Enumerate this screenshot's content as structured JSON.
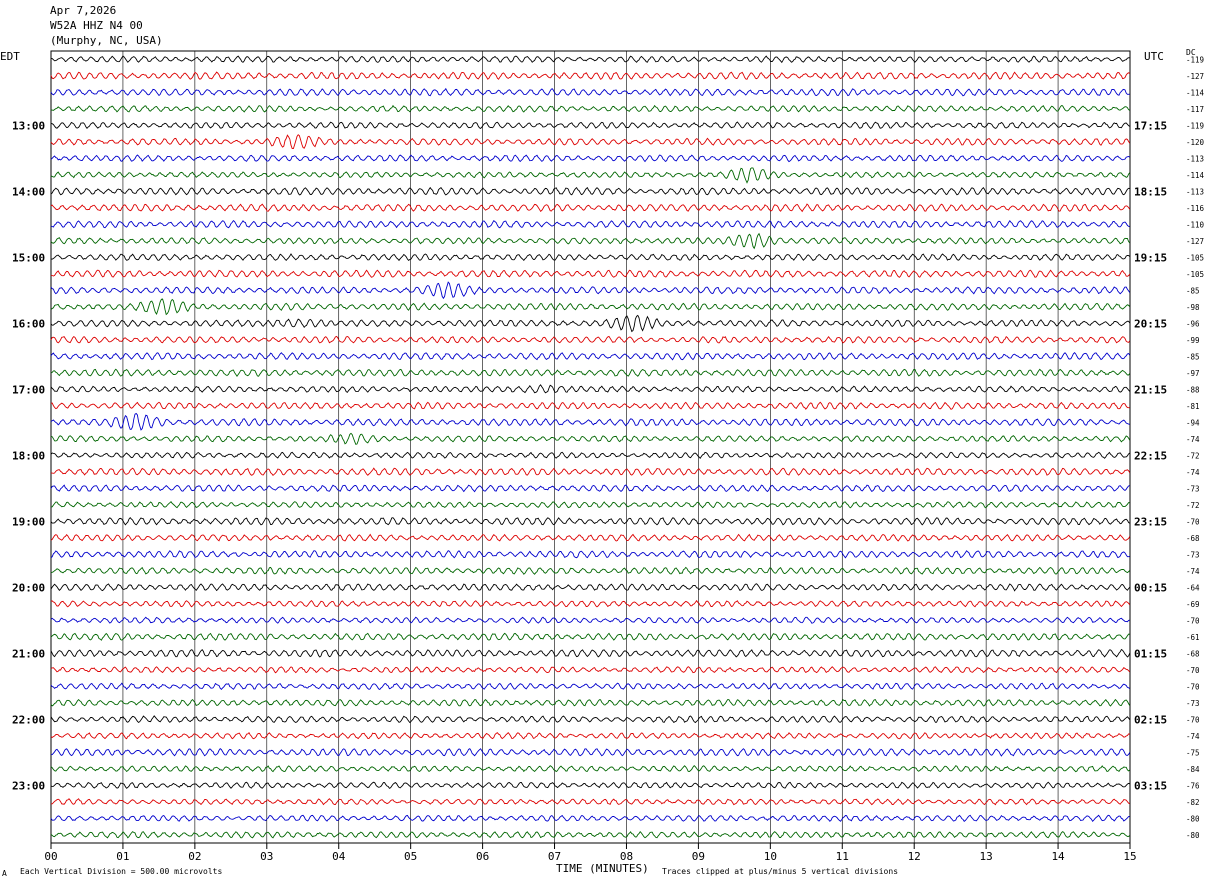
{
  "header": {
    "date": "Apr 7,2026",
    "station": "W52A HHZ N4 00",
    "location": "(Murphy, NC, USA)"
  },
  "left_tz": "EDT",
  "right_tz": "UTC",
  "dc_label": "DC",
  "corner_mark": "A",
  "footer": {
    "left": "Each Vertical Division =  500.00 microvolts",
    "right": "Traces clipped at plus/minus 5 vertical divisions"
  },
  "colors": {
    "trace_cycle": [
      "#000000",
      "#dd0000",
      "#0000cc",
      "#006600"
    ],
    "grid": "#000000"
  },
  "chart_data": {
    "type": "line",
    "title": "",
    "xlabel": "TIME (MINUTES)",
    "ylabel": "",
    "x_range": [
      0,
      15
    ],
    "x_ticks": [
      "00",
      "01",
      "02",
      "03",
      "04",
      "05",
      "06",
      "07",
      "08",
      "09",
      "10",
      "11",
      "12",
      "13",
      "14",
      "15"
    ],
    "rows_per_hour": 4,
    "row_count": 48,
    "left_hour_labels": [
      "13:00",
      "14:00",
      "15:00",
      "16:00",
      "17:00",
      "18:00",
      "19:00",
      "20:00",
      "21:00",
      "22:00",
      "23:00"
    ],
    "right_hour_labels": [
      "17:15",
      "18:15",
      "19:15",
      "20:15",
      "21:15",
      "22:15",
      "23:15",
      "00:15",
      "01:15",
      "02:15",
      "03:15"
    ],
    "first_labeled_row": 4,
    "dc_offsets": [
      "-119",
      "-127",
      "-114",
      "-117",
      "-119",
      "-120",
      "-113",
      "-114",
      "-113",
      "-116",
      "-110",
      "-127",
      "-105",
      "-105",
      "-85",
      "-98",
      "-96",
      "-99",
      "-85",
      "-97",
      "-88",
      "-81",
      "-94",
      "-74",
      "-72",
      "-74",
      "-73",
      "-72",
      "-70",
      "-68",
      "-73",
      "-74",
      "-64",
      "-69",
      "-70",
      "-61",
      "-68",
      "-70",
      "-70",
      "-73",
      "-70",
      "-74",
      "-75",
      "-84",
      "-76",
      "-82",
      "-80",
      "-80"
    ],
    "events": [
      {
        "row": 5,
        "minute": 3.4,
        "strength": 1.6
      },
      {
        "row": 7,
        "minute": 9.7,
        "strength": 2.2
      },
      {
        "row": 11,
        "minute": 9.8,
        "strength": 2.4
      },
      {
        "row": 14,
        "minute": 5.5,
        "strength": 1.8
      },
      {
        "row": 15,
        "minute": 1.6,
        "strength": 2.0
      },
      {
        "row": 16,
        "minute": 8.1,
        "strength": 2.0
      },
      {
        "row": 16,
        "minute": 3.5,
        "strength": 1.4
      },
      {
        "row": 20,
        "minute": 6.8,
        "strength": 1.4
      },
      {
        "row": 22,
        "minute": 1.2,
        "strength": 2.0
      },
      {
        "row": 23,
        "minute": 4.2,
        "strength": 1.3
      }
    ],
    "clip_divisions": 5,
    "grid": true
  }
}
